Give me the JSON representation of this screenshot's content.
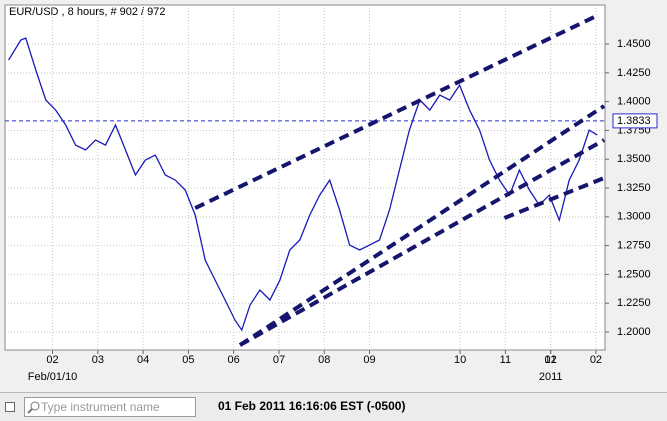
{
  "chart_data": {
    "type": "line",
    "title": "EUR/USD , 8 hours, # 902 / 972",
    "x": [
      0.03,
      0.3,
      0.41,
      0.63,
      0.85,
      1.07,
      1.29,
      1.51,
      1.73,
      1.95,
      2.17,
      2.39,
      2.61,
      2.83,
      3.05,
      3.27,
      3.49,
      3.71,
      3.93,
      4.15,
      4.37,
      4.59,
      4.81,
      5.03,
      5.18,
      5.36,
      5.58,
      5.8,
      6.02,
      6.24,
      6.46,
      6.68,
      6.9,
      7.12,
      7.34,
      7.56,
      7.78,
      8.0,
      8.22,
      8.44,
      8.66,
      8.88,
      9.11,
      9.33,
      9.55,
      9.77,
      9.99,
      10.21,
      10.43,
      10.65,
      10.87,
      11.09,
      11.31,
      11.53,
      11.75,
      11.97,
      12.19,
      12.41,
      12.63,
      12.85,
      13.03
    ],
    "series": [
      {
        "name": "EUR/USD",
        "color": "#1a1ab8",
        "values": [
          1.4361,
          1.4535,
          1.4552,
          1.4274,
          1.4014,
          1.3927,
          1.3797,
          1.3623,
          1.358,
          1.3667,
          1.3623,
          1.3797,
          1.358,
          1.3363,
          1.3493,
          1.3536,
          1.3363,
          1.3319,
          1.3233,
          1.3016,
          1.2625,
          1.2451,
          1.2278,
          1.2104,
          1.2017,
          1.2234,
          1.2365,
          1.2278,
          1.2451,
          1.2712,
          1.2799,
          1.3016,
          1.3189,
          1.3319,
          1.3059,
          1.2755,
          1.2712,
          1.2755,
          1.2799,
          1.3059,
          1.3406,
          1.3753,
          1.4014,
          1.3927,
          1.4057,
          1.4014,
          1.4144,
          1.3927,
          1.3753,
          1.3493,
          1.3319,
          1.3189,
          1.3406,
          1.3233,
          1.3102,
          1.3189,
          1.2972,
          1.3319,
          1.3493,
          1.3753,
          1.371
        ]
      }
    ],
    "xlim": [
      -0.05,
      13.2
    ],
    "xticks": [
      {
        "value": 1,
        "label": "02"
      },
      {
        "value": 2,
        "label": "03"
      },
      {
        "value": 3,
        "label": "04"
      },
      {
        "value": 4,
        "label": "05"
      },
      {
        "value": 5,
        "label": "06"
      },
      {
        "value": 6,
        "label": "07"
      },
      {
        "value": 7,
        "label": "08"
      },
      {
        "value": 8,
        "label": "09"
      },
      10,
      11,
      12,
      {
        "value": 12,
        "label": "01"
      },
      {
        "value": 13,
        "label": "02"
      }
    ],
    "period_labels": [
      {
        "x": 1,
        "text": "Feb/01/10"
      },
      {
        "x": 12,
        "text": "2011"
      }
    ],
    "ylim": [
      1.1844,
      1.4839
    ],
    "yticks": [
      {
        "value": 1.2,
        "label": "1.2000"
      },
      {
        "value": 1.225,
        "label": "1.2250"
      },
      {
        "value": 1.25,
        "label": "1.2500"
      },
      {
        "value": 1.275,
        "label": "1.2750"
      },
      {
        "value": 1.3,
        "label": "1.3000"
      },
      {
        "value": 1.325,
        "label": "1.3250"
      },
      {
        "value": 1.35,
        "label": "1.3500"
      },
      {
        "value": 1.375,
        "label": "1.3750"
      },
      {
        "value": 1.4,
        "label": "1.4000"
      },
      {
        "value": 1.425,
        "label": "1.4250"
      },
      {
        "value": 1.45,
        "label": "1.4500"
      }
    ],
    "current_price": {
      "value": 1.3833,
      "label": "1.3833",
      "color": "#2a2ad0"
    },
    "trendlines": [
      {
        "x": [
          4.15,
          12.96
        ],
        "y": [
          1.3076,
          1.4734
        ]
      },
      {
        "x": [
          5.14,
          13.18
        ],
        "y": [
          1.1887,
          1.3962
        ]
      },
      {
        "x": [
          5.14,
          13.18
        ],
        "y": [
          1.1887,
          1.3667
        ]
      },
      {
        "x": [
          10.98,
          13.18
        ],
        "y": [
          1.299,
          1.3337
        ]
      }
    ],
    "trendline_color": "#15156e",
    "grid": true
  },
  "toolbar": {
    "search_placeholder": "Type instrument name",
    "timestamp": "01 Feb 2011 16:16:06  EST (-0500)"
  }
}
